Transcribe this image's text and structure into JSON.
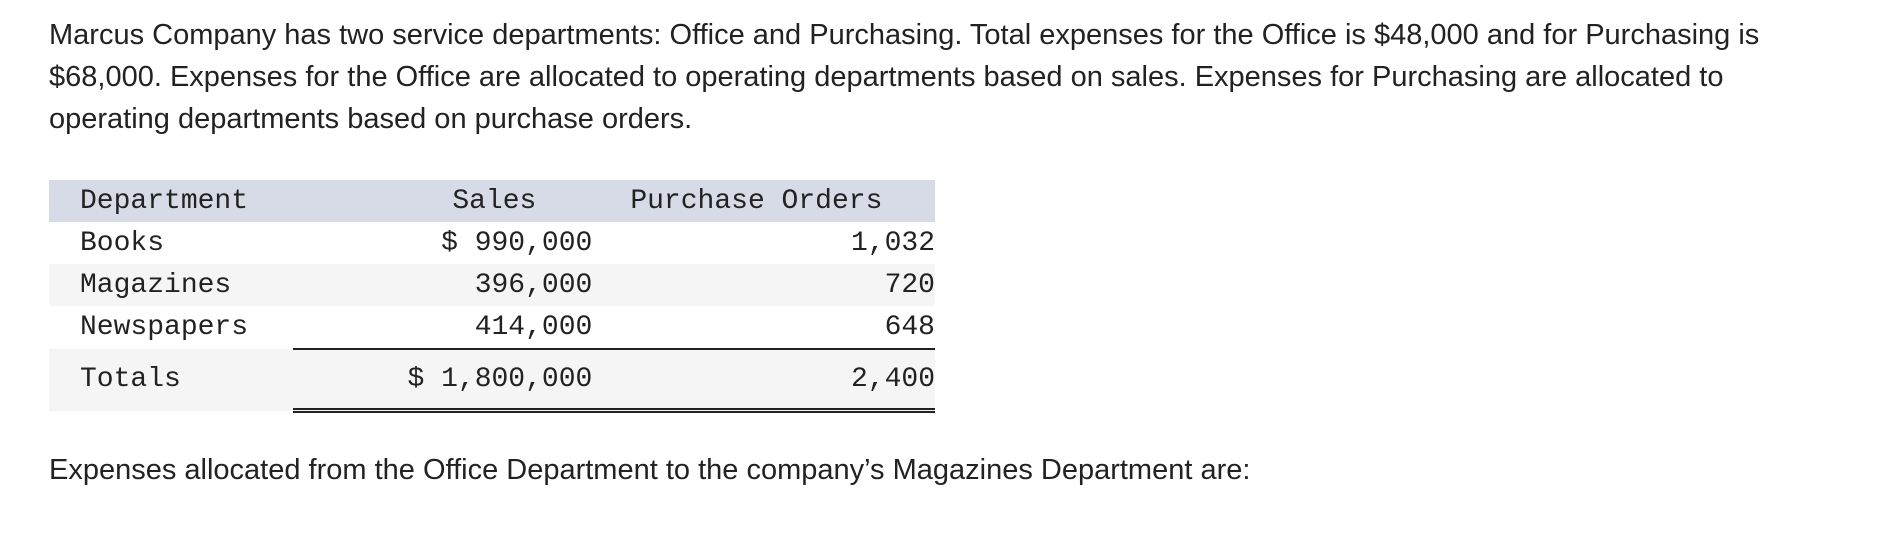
{
  "intro": "Marcus Company has two service departments: Office and Purchasing. Total expenses for the Office is $48,000 and for Purchasing is $68,000. Expenses for the Office are allocated to operating departments based on sales. Expenses for Purchasing are allocated to operating departments based on purchase orders.",
  "table": {
    "headers": {
      "department": "Department",
      "sales": "Sales",
      "purchase_orders": "Purchase Orders"
    },
    "rows": [
      {
        "department": "Books",
        "sales": "$ 990,000",
        "purchase_orders": "1,032"
      },
      {
        "department": "Magazines",
        "sales": "396,000",
        "purchase_orders": "720"
      },
      {
        "department": "Newspapers",
        "sales": "414,000",
        "purchase_orders": "648"
      }
    ],
    "totals": {
      "department": "Totals",
      "sales": "$ 1,800,000",
      "purchase_orders": "2,400"
    }
  },
  "question": "Expenses allocated from the Office Department to the company’s Magazines Department are:"
}
